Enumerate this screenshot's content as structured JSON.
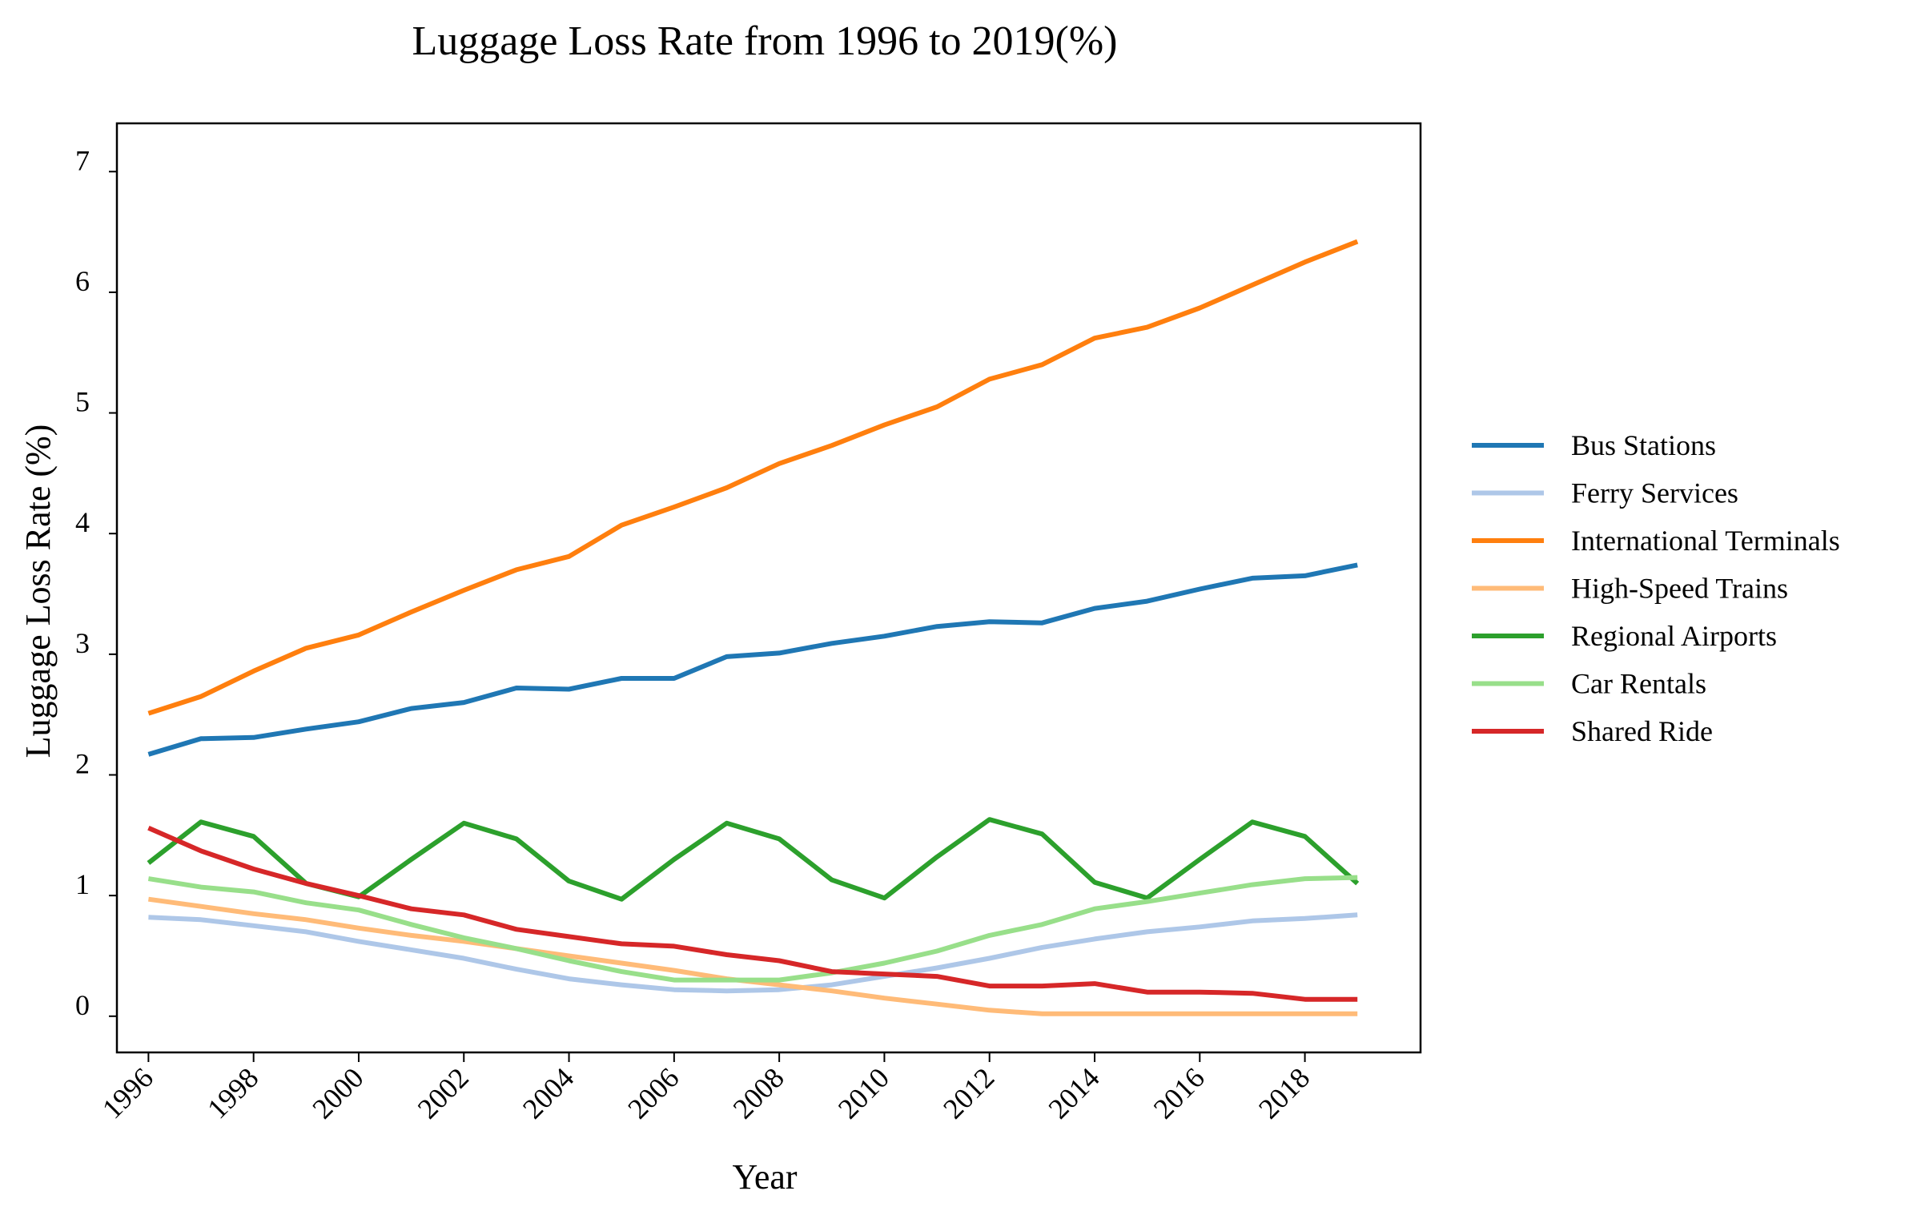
{
  "chart_data": {
    "type": "line",
    "title": "Luggage Loss Rate from 1996 to 2019(%)",
    "xlabel": "Year",
    "ylabel": "Luggage Loss Rate (%)",
    "x": [
      1996,
      1997,
      1998,
      1999,
      2000,
      2001,
      2002,
      2003,
      2004,
      2005,
      2006,
      2007,
      2008,
      2009,
      2010,
      2011,
      2012,
      2013,
      2014,
      2015,
      2016,
      2017,
      2018,
      2019
    ],
    "xticks": [
      "1996",
      "1998",
      "2000",
      "2002",
      "2004",
      "2006",
      "2008",
      "2010",
      "2012",
      "2014",
      "2016",
      "2018"
    ],
    "yticks": [
      "0",
      "1",
      "2",
      "3",
      "4",
      "5",
      "6",
      "7"
    ],
    "xlim": [
      1995.4,
      2020.2
    ],
    "ylim": [
      -0.3,
      7.4
    ],
    "grid": false,
    "legend_position": "right",
    "series": [
      {
        "name": "Bus Stations",
        "color": "#1f77b4",
        "values": [
          2.17,
          2.3,
          2.31,
          2.38,
          2.44,
          2.55,
          2.6,
          2.72,
          2.71,
          2.8,
          2.8,
          2.98,
          3.01,
          3.09,
          3.15,
          3.23,
          3.27,
          3.26,
          3.38,
          3.44,
          3.54,
          3.63,
          3.65,
          3.74
        ]
      },
      {
        "name": "Ferry Services",
        "color": "#aec7e8",
        "values": [
          0.82,
          0.8,
          0.75,
          0.7,
          0.62,
          0.55,
          0.48,
          0.39,
          0.31,
          0.26,
          0.22,
          0.21,
          0.22,
          0.26,
          0.33,
          0.4,
          0.48,
          0.57,
          0.64,
          0.7,
          0.74,
          0.79,
          0.81,
          0.84
        ]
      },
      {
        "name": "International Terminals",
        "color": "#ff7f0e",
        "values": [
          2.51,
          2.65,
          2.86,
          3.05,
          3.16,
          3.35,
          3.53,
          3.7,
          3.81,
          4.07,
          4.22,
          4.38,
          4.58,
          4.73,
          4.9,
          5.05,
          5.28,
          5.4,
          5.62,
          5.71,
          5.87,
          6.06,
          6.25,
          6.42
        ]
      },
      {
        "name": "High-Speed Trains",
        "color": "#ffbb78",
        "values": [
          0.97,
          0.91,
          0.85,
          0.8,
          0.73,
          0.67,
          0.62,
          0.56,
          0.5,
          0.44,
          0.38,
          0.31,
          0.26,
          0.21,
          0.15,
          0.1,
          0.05,
          0.02,
          0.02,
          0.02,
          0.02,
          0.02,
          0.02,
          0.02
        ]
      },
      {
        "name": "Regional Airports",
        "color": "#2ca02c",
        "values": [
          1.27,
          1.61,
          1.49,
          1.1,
          0.99,
          1.3,
          1.6,
          1.47,
          1.12,
          0.97,
          1.3,
          1.6,
          1.47,
          1.13,
          0.98,
          1.32,
          1.63,
          1.51,
          1.11,
          0.98,
          1.3,
          1.61,
          1.49,
          1.1
        ]
      },
      {
        "name": "Car Rentals",
        "color": "#98df8a",
        "values": [
          1.14,
          1.07,
          1.03,
          0.94,
          0.88,
          0.76,
          0.65,
          0.56,
          0.46,
          0.37,
          0.3,
          0.3,
          0.3,
          0.36,
          0.44,
          0.54,
          0.67,
          0.76,
          0.89,
          0.95,
          1.02,
          1.09,
          1.14,
          1.15
        ]
      },
      {
        "name": "Shared Ride",
        "color": "#d62728",
        "values": [
          1.56,
          1.37,
          1.22,
          1.1,
          1.0,
          0.89,
          0.84,
          0.72,
          0.66,
          0.6,
          0.58,
          0.51,
          0.46,
          0.37,
          0.35,
          0.33,
          0.25,
          0.25,
          0.27,
          0.2,
          0.2,
          0.19,
          0.14,
          0.14
        ]
      }
    ]
  }
}
